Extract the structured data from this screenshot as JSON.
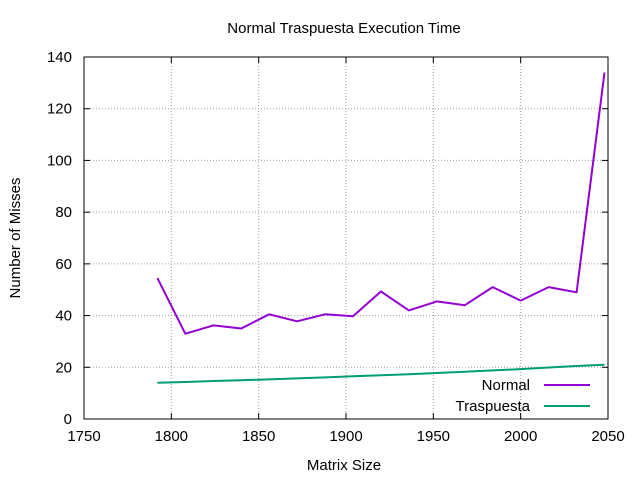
{
  "chart_data": {
    "type": "line",
    "title": "Normal Traspuesta Execution Time",
    "xlabel": "Matrix Size",
    "ylabel": "Number of Misses",
    "xlim": [
      1750,
      2050
    ],
    "ylim": [
      0,
      140
    ],
    "xticks": [
      1750,
      1800,
      1850,
      1900,
      1950,
      2000,
      2050
    ],
    "yticks": [
      0,
      20,
      40,
      60,
      80,
      100,
      120,
      140
    ],
    "grid": true,
    "legend_position": "bottom-right",
    "x": [
      1792,
      1808,
      1824,
      1840,
      1856,
      1872,
      1888,
      1904,
      1920,
      1936,
      1952,
      1968,
      1984,
      2000,
      2016,
      2032,
      2048
    ],
    "series": [
      {
        "name": "Normal",
        "color": "#9400d3",
        "values": [
          54.5,
          33,
          36.2,
          35,
          40.5,
          37.8,
          40.5,
          39.7,
          49.3,
          42,
          45.5,
          44,
          51,
          45.8,
          51,
          49,
          134
        ]
      },
      {
        "name": "Traspuesta",
        "color": "#009e73",
        "values": [
          14,
          14.3,
          14.7,
          15,
          15.3,
          15.7,
          16.1,
          16.5,
          16.9,
          17.3,
          17.8,
          18.3,
          18.8,
          19.3,
          19.9,
          20.5,
          21
        ]
      }
    ]
  }
}
